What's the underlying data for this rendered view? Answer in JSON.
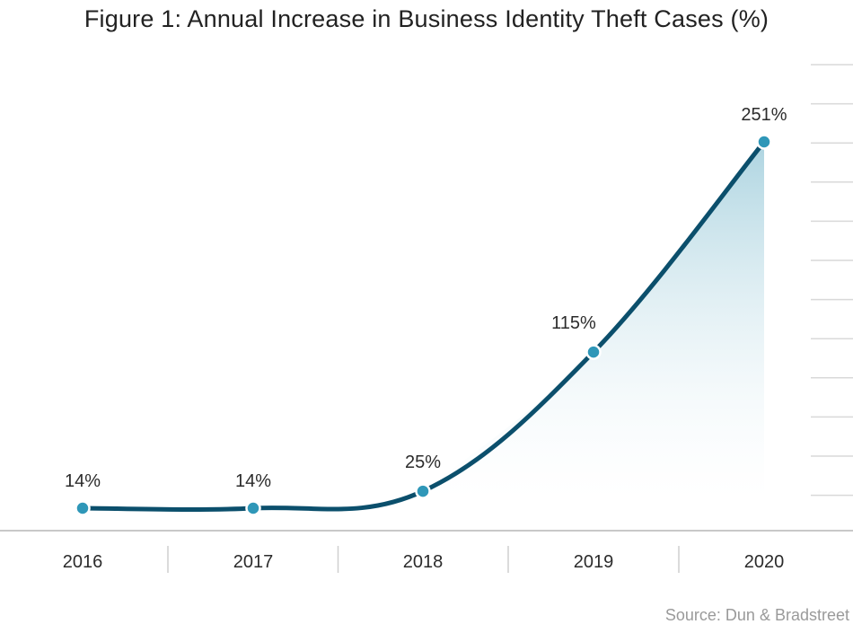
{
  "chart_data": {
    "type": "line",
    "title": "Figure 1: Annual Increase in Business Identity Theft Cases (%)",
    "source": "Source: Dun & Bradstreet",
    "categories": [
      "2016",
      "2017",
      "2018",
      "2019",
      "2020"
    ],
    "series": [
      {
        "values": [
          14,
          14,
          25,
          115,
          251
        ],
        "labels": [
          "14%",
          "14%",
          "25%",
          "115%",
          "251%"
        ]
      }
    ],
    "xlabel": "",
    "ylabel": "",
    "ylim": [
      0,
      280
    ],
    "grid": false,
    "legend": "none",
    "colors": {
      "line": "#0b4f6c",
      "marker": "#2f97b8",
      "area_top": "#a9d2df",
      "axis": "#c8c8c8",
      "tick_text": "#2b2b2b"
    }
  }
}
